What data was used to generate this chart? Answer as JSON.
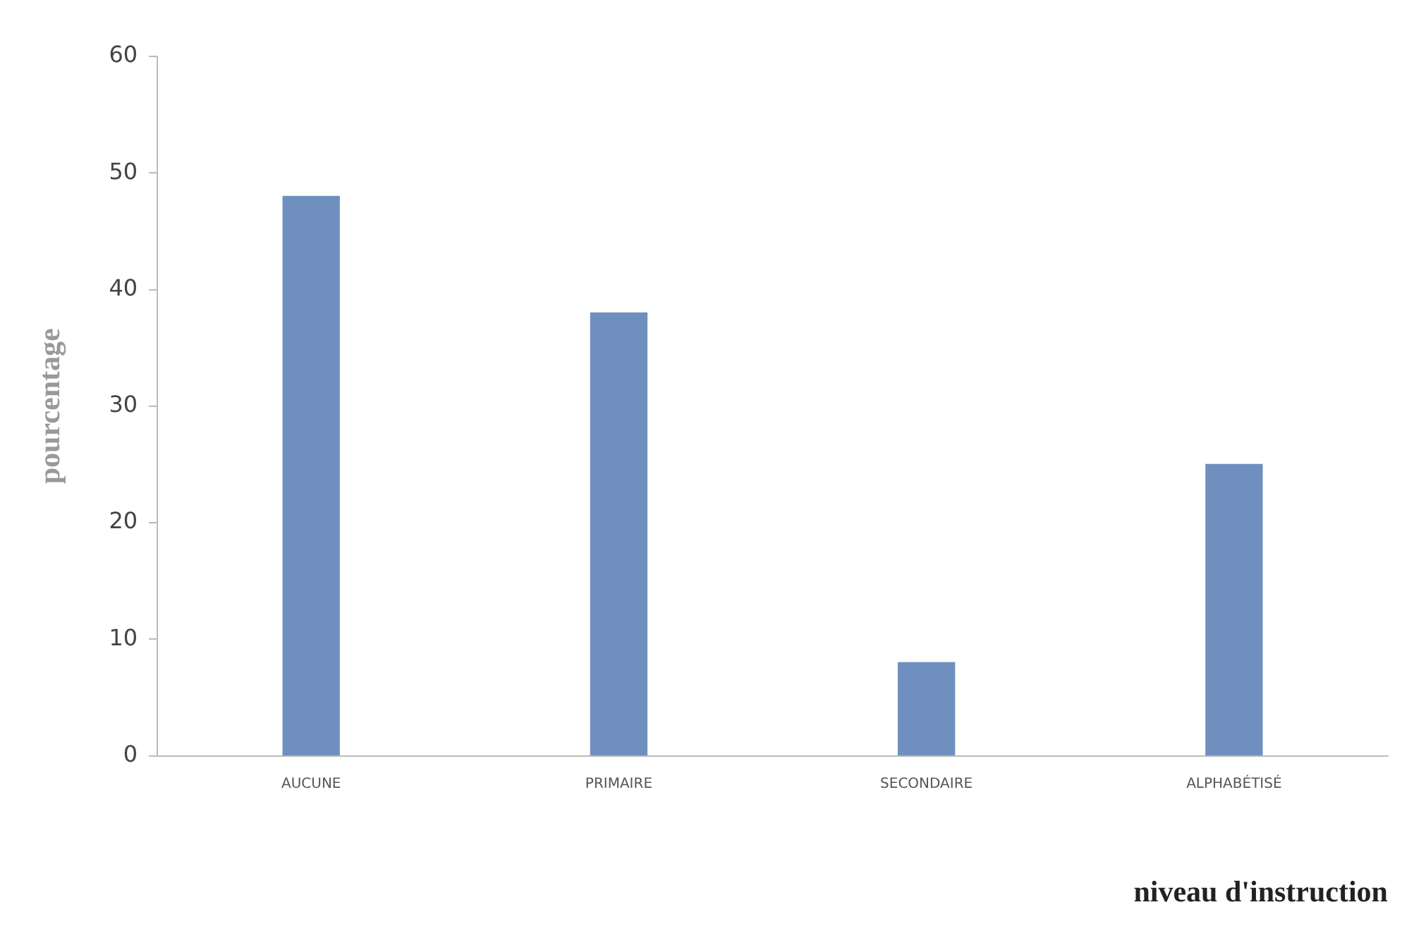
{
  "chart_data": {
    "type": "bar",
    "xlabel": "niveau d'instruction",
    "ylabel": "pourcentage",
    "categories": [
      "AUCUNE",
      "PRIMAIRE",
      "SECONDAIRE",
      "ALPHABÉTISÉ"
    ],
    "values": [
      48,
      38,
      8,
      25
    ],
    "color": "#6f8fbf",
    "ylim": [
      0,
      60
    ],
    "yticks": [
      0,
      10,
      20,
      30,
      40,
      50,
      60
    ],
    "grid": false,
    "legend": false
  }
}
